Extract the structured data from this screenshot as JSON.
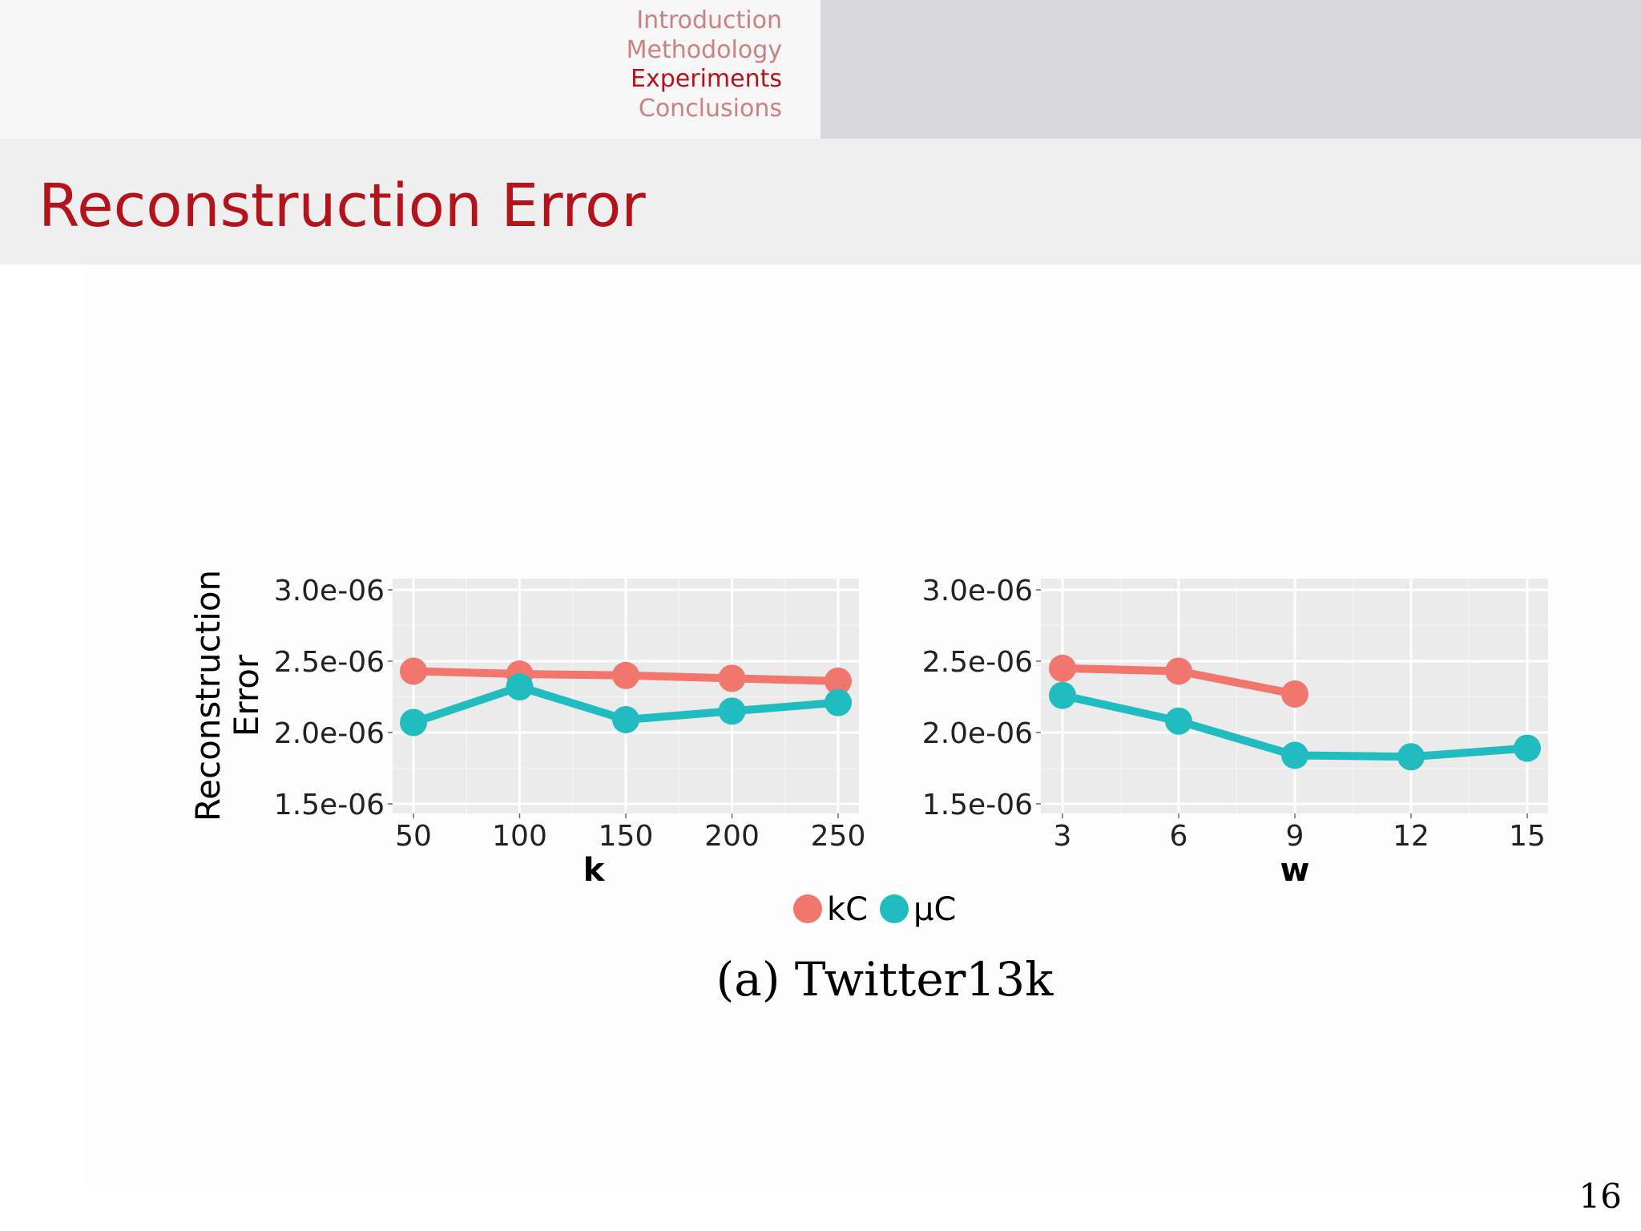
{
  "nav": {
    "items": [
      {
        "label": "Introduction",
        "active": false
      },
      {
        "label": "Methodology",
        "active": false
      },
      {
        "label": "Experiments",
        "active": true
      },
      {
        "label": "Conclusions",
        "active": false
      }
    ]
  },
  "frame_title": "Reconstruction Error",
  "page_number": "16",
  "colors": {
    "accent": "#b3131b",
    "kC": "#f0766e",
    "muC": "#20bcbf",
    "panel_bg": "#ebebeb"
  },
  "chart_data": {
    "type": "line",
    "caption": "(a) Twitter13k",
    "shared_ylabel": "Reconstruction Error",
    "legend": {
      "placement": "bottom",
      "entries": [
        "kC",
        "μC"
      ]
    },
    "panels": [
      {
        "xlabel": "k",
        "x": [
          50,
          100,
          150,
          200,
          250
        ],
        "xticks": [
          "50",
          "100",
          "150",
          "200",
          "250"
        ],
        "ylim": [
          1.5e-06,
          3e-06
        ],
        "yticks": [
          "1.5e-06",
          "2.0e-06",
          "2.5e-06",
          "3.0e-06"
        ],
        "ytick_values": [
          1.5e-06,
          2e-06,
          2.5e-06,
          3e-06
        ],
        "grid": true,
        "series": [
          {
            "name": "kC",
            "color_key": "kC",
            "values": [
              2.43e-06,
              2.41e-06,
              2.4e-06,
              2.38e-06,
              2.36e-06
            ]
          },
          {
            "name": "μC",
            "color_key": "muC",
            "values": [
              2.07e-06,
              2.32e-06,
              2.09e-06,
              2.15e-06,
              2.21e-06
            ]
          }
        ]
      },
      {
        "xlabel": "w",
        "x": [
          3,
          6,
          9,
          12,
          15
        ],
        "xticks": [
          "3",
          "6",
          "9",
          "12",
          "15"
        ],
        "ylim": [
          1.5e-06,
          3e-06
        ],
        "yticks": [
          "1.5e-06",
          "2.0e-06",
          "2.5e-06",
          "3.0e-06"
        ],
        "ytick_values": [
          1.5e-06,
          2e-06,
          2.5e-06,
          3e-06
        ],
        "grid": true,
        "series": [
          {
            "name": "kC",
            "color_key": "kC",
            "values": [
              2.45e-06,
              2.43e-06,
              2.27e-06,
              null,
              null
            ]
          },
          {
            "name": "μC",
            "color_key": "muC",
            "values": [
              2.26e-06,
              2.08e-06,
              1.84e-06,
              1.83e-06,
              1.89e-06
            ]
          }
        ]
      }
    ]
  }
}
